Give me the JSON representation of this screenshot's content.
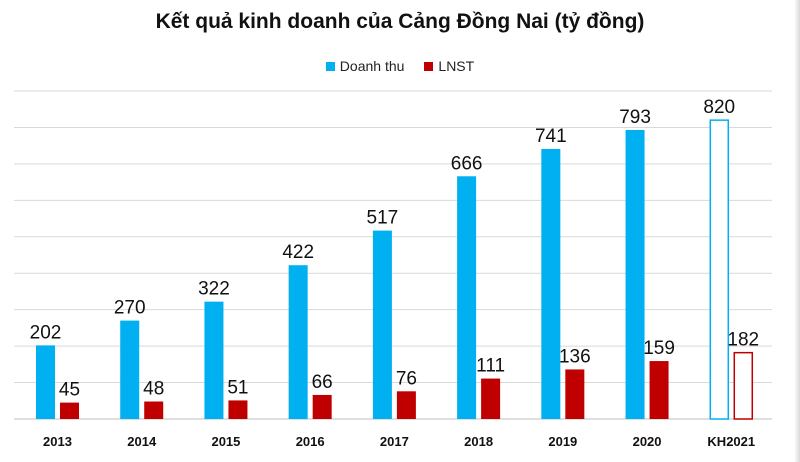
{
  "chart_data": {
    "type": "bar",
    "title": "Kết quả kinh doanh của Cảng Đồng Nai (tỷ đồng)",
    "categories": [
      "2013",
      "2014",
      "2015",
      "2016",
      "2017",
      "2018",
      "2019",
      "2020",
      "KH2021"
    ],
    "series": [
      {
        "name": "Doanh thu",
        "color": "#00b0f0",
        "values": [
          202,
          270,
          322,
          422,
          517,
          666,
          741,
          793,
          820
        ]
      },
      {
        "name": "LNST",
        "color": "#c00000",
        "values": [
          45,
          48,
          51,
          66,
          76,
          111,
          136,
          159,
          182
        ]
      }
    ],
    "planned_category": "KH2021",
    "planned_style": "outline",
    "ylim": [
      0,
      900
    ],
    "grid": true,
    "legend_position": "top-center",
    "xlabel": "",
    "ylabel": ""
  }
}
